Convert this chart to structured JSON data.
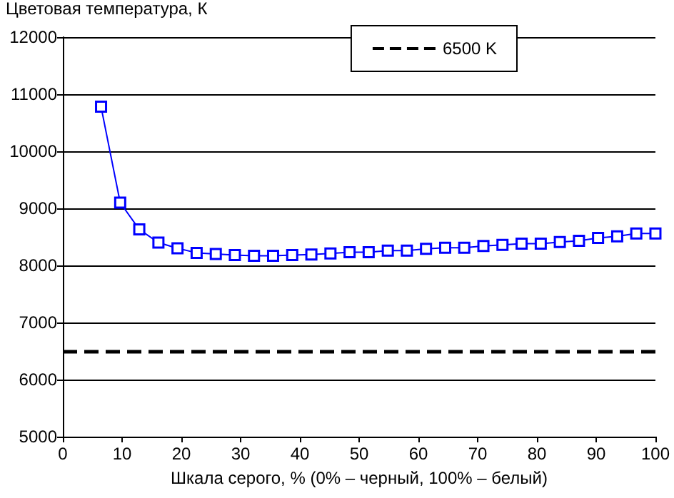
{
  "chart_data": {
    "type": "line",
    "ylabel": "Цветовая температура, К",
    "xlabel": "Шкала серого, % (0% – черный, 100% – белый)",
    "series": [
      {
        "color": "#0000ff",
        "x": [
          6.45,
          9.68,
          12.9,
          16.13,
          19.35,
          22.58,
          25.81,
          29.03,
          32.26,
          35.48,
          38.71,
          41.94,
          45.16,
          48.39,
          51.61,
          54.84,
          58.06,
          61.29,
          64.52,
          67.74,
          70.97,
          74.19,
          77.42,
          80.65,
          83.87,
          87.1,
          90.32,
          93.55,
          96.77,
          100
        ],
        "values": [
          10780,
          9100,
          8630,
          8400,
          8300,
          8220,
          8200,
          8180,
          8170,
          8170,
          8180,
          8190,
          8210,
          8230,
          8230,
          8260,
          8260,
          8290,
          8310,
          8310,
          8340,
          8360,
          8380,
          8380,
          8410,
          8430,
          8480,
          8510,
          8560,
          8560
        ]
      }
    ],
    "xlim": [
      0,
      100
    ],
    "xticks": [
      0,
      10,
      20,
      30,
      40,
      50,
      60,
      70,
      80,
      90,
      100
    ],
    "ylim": [
      5000,
      12000
    ],
    "yticks": [
      5000,
      6000,
      7000,
      8000,
      9000,
      10000,
      11000,
      12000
    ],
    "ref_lines": [
      {
        "axis": "y",
        "value": 6500,
        "label": "6500 K",
        "color": "#000000",
        "line_style": "dashed"
      }
    ],
    "grid": "y",
    "legend": "top right",
    "marker": "square",
    "line_style": "solid"
  }
}
